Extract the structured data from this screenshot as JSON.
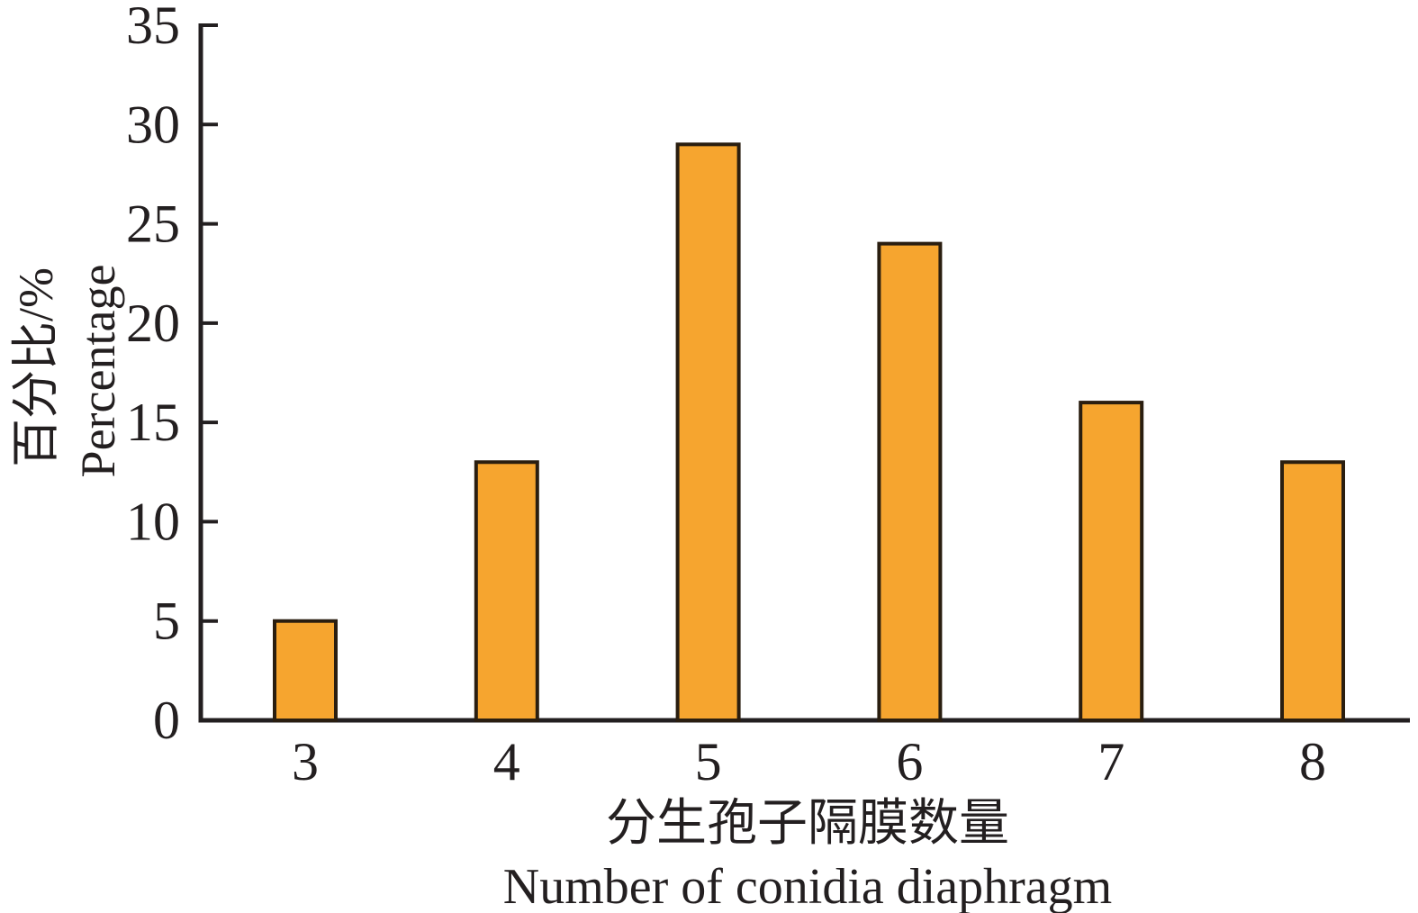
{
  "figure": {
    "background": "#FFFFFF"
  },
  "chart_data": {
    "type": "bar",
    "categories": [
      "3",
      "4",
      "5",
      "6",
      "7",
      "8"
    ],
    "values": [
      5,
      13,
      29,
      24,
      16,
      13
    ],
    "title": "",
    "xlabel_lines": [
      "分生孢子隔膜数量",
      "Number of conidia diaphragm"
    ],
    "ylabel_lines": [
      "百分比/%",
      "Percentage"
    ],
    "ylim": [
      0,
      35
    ],
    "yticks": [
      0,
      5,
      10,
      15,
      20,
      25,
      30,
      35
    ],
    "grid": false,
    "legend": "none",
    "bar_fill": "#F6A52F",
    "bar_stroke": "#2A1E10",
    "axis_color": "#231F20",
    "text_color": "#231F20"
  }
}
